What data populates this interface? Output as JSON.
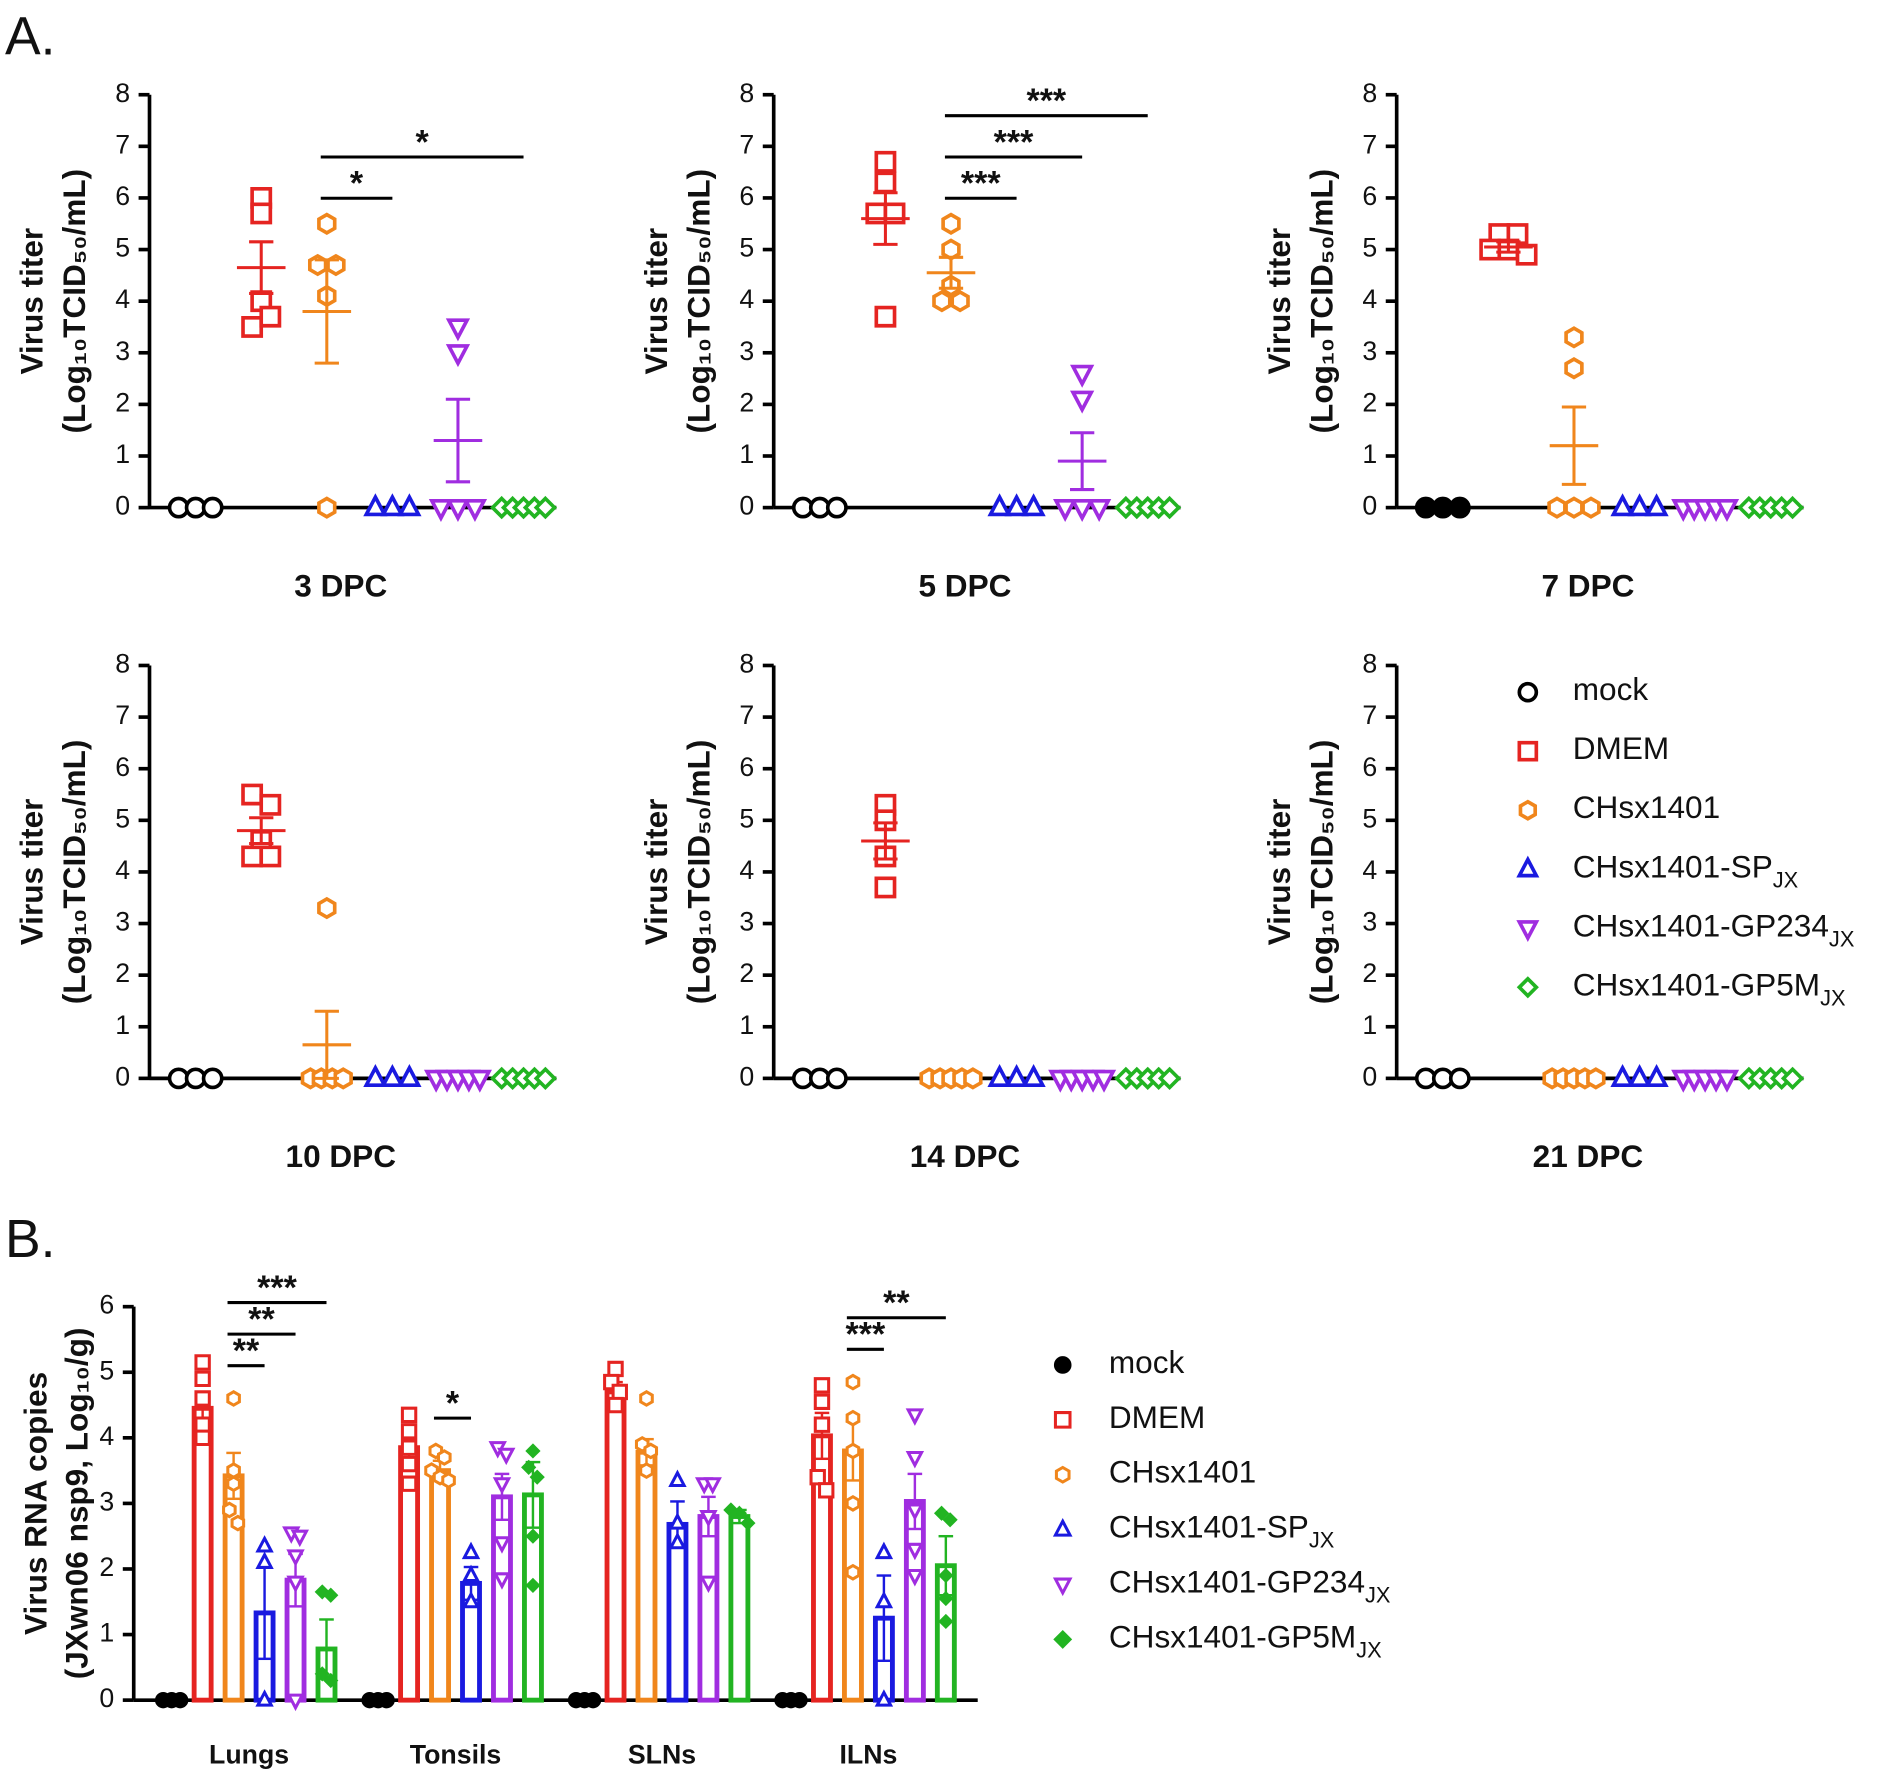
{
  "panel_labels": [
    "A.",
    "B."
  ],
  "legend": {
    "entries": [
      {
        "name": "mock",
        "color": "#000000",
        "marker": "circle",
        "filled": false
      },
      {
        "name": "DMEM",
        "color": "#e52421",
        "marker": "square",
        "filled": false
      },
      {
        "name": "CHsx1401",
        "color": "#f0861c",
        "marker": "hexagon",
        "filled": false
      },
      {
        "name": "CHsx1401-SP",
        "name_sub": "JX",
        "color": "#1a1ae0",
        "marker": "triangle",
        "filled": false
      },
      {
        "name": "CHsx1401-GP234",
        "name_sub": "JX",
        "color": "#a02de0",
        "marker": "triangle-down",
        "filled": false
      },
      {
        "name": "CHsx1401-GP5M",
        "name_sub": "JX",
        "color": "#22b422",
        "marker": "diamond",
        "filled": false
      }
    ]
  },
  "chart_data": [
    {
      "type": "scatter",
      "xlabel": "3 DPC",
      "ylabel": [
        "Virus titer",
        "(Log₁₀TCID₅₀/mL)"
      ],
      "ylim": [
        0,
        8
      ],
      "yticks": [
        0,
        1,
        2,
        3,
        4,
        5,
        6,
        7,
        8
      ],
      "series": [
        {
          "color": "#000000",
          "marker": "circle",
          "filled": false,
          "values": [
            0,
            0,
            0
          ]
        },
        {
          "color": "#e52421",
          "marker": "square",
          "filled": false,
          "values": [
            6.0,
            5.7,
            4.0,
            3.5,
            3.7
          ],
          "mean": 4.65,
          "sem": 0.5
        },
        {
          "color": "#f0861c",
          "marker": "hexagon",
          "filled": false,
          "values": [
            5.5,
            4.7,
            4.7,
            4.1,
            0
          ],
          "mean": 3.8,
          "sem": 1.0
        },
        {
          "color": "#1a1ae0",
          "marker": "triangle",
          "filled": false,
          "values": [
            0,
            0,
            0
          ]
        },
        {
          "color": "#a02de0",
          "marker": "triangle-down",
          "filled": false,
          "values": [
            3.5,
            3.0,
            0,
            0,
            0
          ],
          "mean": 1.3,
          "sem": 0.8
        },
        {
          "color": "#22b422",
          "marker": "diamond",
          "filled": false,
          "values": [
            0,
            0,
            0,
            0,
            0
          ]
        }
      ],
      "comparisons": [
        {
          "from": 2,
          "to": 3,
          "label": "*"
        },
        {
          "from": 2,
          "to": 5,
          "label": "*"
        }
      ]
    },
    {
      "type": "scatter",
      "xlabel": "5 DPC",
      "ylabel": [
        "Virus titer",
        "(Log₁₀TCID₅₀/mL)"
      ],
      "ylim": [
        0,
        8
      ],
      "yticks": [
        0,
        1,
        2,
        3,
        4,
        5,
        6,
        7,
        8
      ],
      "series": [
        {
          "color": "#000000",
          "marker": "circle",
          "filled": false,
          "values": [
            0,
            0,
            0
          ]
        },
        {
          "color": "#e52421",
          "marker": "square",
          "filled": false,
          "values": [
            6.7,
            6.3,
            5.7,
            5.7,
            3.7
          ],
          "mean": 5.6,
          "sem": 0.5
        },
        {
          "color": "#f0861c",
          "marker": "hexagon",
          "filled": false,
          "values": [
            5.5,
            5.0,
            4.3,
            4.0,
            4.0
          ],
          "mean": 4.55,
          "sem": 0.3
        },
        {
          "color": "#1a1ae0",
          "marker": "triangle",
          "filled": false,
          "values": [
            0,
            0,
            0
          ]
        },
        {
          "color": "#a02de0",
          "marker": "triangle-down",
          "filled": false,
          "values": [
            2.6,
            2.1,
            0,
            0,
            0
          ],
          "mean": 0.9,
          "sem": 0.55
        },
        {
          "color": "#22b422",
          "marker": "diamond",
          "filled": false,
          "values": [
            0,
            0,
            0,
            0,
            0
          ]
        }
      ],
      "comparisons": [
        {
          "from": 2,
          "to": 3,
          "label": "***"
        },
        {
          "from": 2,
          "to": 4,
          "label": "***"
        },
        {
          "from": 2,
          "to": 5,
          "label": "***"
        }
      ]
    },
    {
      "type": "scatter",
      "xlabel": "7 DPC",
      "ylabel": [
        "Virus titer",
        "(Log₁₀TCID₅₀/mL)"
      ],
      "ylim": [
        0,
        8
      ],
      "yticks": [
        0,
        1,
        2,
        3,
        4,
        5,
        6,
        7,
        8
      ],
      "series": [
        {
          "color": "#000000",
          "marker": "circle",
          "filled": true,
          "values": [
            0,
            0,
            0
          ]
        },
        {
          "color": "#e52421",
          "marker": "square",
          "filled": false,
          "values": [
            5.3,
            5.3,
            5.0,
            5.0,
            4.9
          ],
          "mean": 5.05,
          "sem": 0.1
        },
        {
          "color": "#f0861c",
          "marker": "hexagon",
          "filled": false,
          "values": [
            3.3,
            2.7,
            0,
            0,
            0
          ],
          "mean": 1.2,
          "sem": 0.75
        },
        {
          "color": "#1a1ae0",
          "marker": "triangle",
          "filled": false,
          "values": [
            0,
            0,
            0
          ]
        },
        {
          "color": "#a02de0",
          "marker": "triangle-down",
          "filled": false,
          "values": [
            0,
            0,
            0,
            0,
            0
          ]
        },
        {
          "color": "#22b422",
          "marker": "diamond",
          "filled": false,
          "values": [
            0,
            0,
            0,
            0,
            0
          ]
        }
      ]
    },
    {
      "type": "scatter",
      "xlabel": "10 DPC",
      "ylabel": [
        "Virus titer",
        "(Log₁₀TCID₅₀/mL)"
      ],
      "ylim": [
        0,
        8
      ],
      "yticks": [
        0,
        1,
        2,
        3,
        4,
        5,
        6,
        7,
        8
      ],
      "series": [
        {
          "color": "#000000",
          "marker": "circle",
          "filled": false,
          "values": [
            0,
            0,
            0
          ]
        },
        {
          "color": "#e52421",
          "marker": "square",
          "filled": false,
          "values": [
            5.5,
            5.3,
            4.6,
            4.3,
            4.3
          ],
          "mean": 4.8,
          "sem": 0.25
        },
        {
          "color": "#f0861c",
          "marker": "hexagon",
          "filled": false,
          "values": [
            3.3,
            0,
            0,
            0,
            0
          ],
          "mean": 0.65,
          "sem": 0.65
        },
        {
          "color": "#1a1ae0",
          "marker": "triangle",
          "filled": false,
          "values": [
            0,
            0,
            0
          ]
        },
        {
          "color": "#a02de0",
          "marker": "triangle-down",
          "filled": false,
          "values": [
            0,
            0,
            0,
            0,
            0
          ]
        },
        {
          "color": "#22b422",
          "marker": "diamond",
          "filled": false,
          "values": [
            0,
            0,
            0,
            0,
            0
          ]
        }
      ]
    },
    {
      "type": "scatter",
      "xlabel": "14 DPC",
      "ylabel": [
        "Virus titer",
        "(Log₁₀TCID₅₀/mL)"
      ],
      "ylim": [
        0,
        8
      ],
      "yticks": [
        0,
        1,
        2,
        3,
        4,
        5,
        6,
        7,
        8
      ],
      "series": [
        {
          "color": "#000000",
          "marker": "circle",
          "filled": false,
          "values": [
            0,
            0,
            0
          ]
        },
        {
          "color": "#e52421",
          "marker": "square",
          "filled": false,
          "values": [
            5.3,
            5.0,
            4.3,
            3.7
          ],
          "mean": 4.6,
          "sem": 0.35
        },
        {
          "color": "#f0861c",
          "marker": "hexagon",
          "filled": false,
          "values": [
            0,
            0,
            0,
            0,
            0
          ]
        },
        {
          "color": "#1a1ae0",
          "marker": "triangle",
          "filled": false,
          "values": [
            0,
            0,
            0
          ]
        },
        {
          "color": "#a02de0",
          "marker": "triangle-down",
          "filled": false,
          "values": [
            0,
            0,
            0,
            0,
            0
          ]
        },
        {
          "color": "#22b422",
          "marker": "diamond",
          "filled": false,
          "values": [
            0,
            0,
            0,
            0,
            0
          ]
        }
      ]
    },
    {
      "type": "scatter",
      "xlabel": "21 DPC",
      "ylabel": [
        "Virus titer",
        "(Log₁₀TCID₅₀/mL)"
      ],
      "ylim": [
        0,
        8
      ],
      "yticks": [
        0,
        1,
        2,
        3,
        4,
        5,
        6,
        7,
        8
      ],
      "series": [
        {
          "color": "#000000",
          "marker": "circle",
          "filled": false,
          "values": [
            0,
            0,
            0
          ]
        },
        {
          "color": "#e52421",
          "marker": "square",
          "filled": false,
          "values": []
        },
        {
          "color": "#f0861c",
          "marker": "hexagon",
          "filled": false,
          "values": [
            0,
            0,
            0,
            0,
            0
          ]
        },
        {
          "color": "#1a1ae0",
          "marker": "triangle",
          "filled": false,
          "values": [
            0,
            0,
            0
          ]
        },
        {
          "color": "#a02de0",
          "marker": "triangle-down",
          "filled": false,
          "values": [
            0,
            0,
            0,
            0,
            0
          ]
        },
        {
          "color": "#22b422",
          "marker": "diamond",
          "filled": false,
          "values": [
            0,
            0,
            0,
            0,
            0
          ]
        }
      ]
    },
    {
      "type": "bar",
      "ylabel": [
        "Virus RNA copies",
        "(JXwn06 nsp9, Log₁₀/g)"
      ],
      "ylim": [
        0,
        6
      ],
      "yticks": [
        0,
        1,
        2,
        3,
        4,
        5,
        6
      ],
      "categories": [
        "Lungs",
        "Tonsils",
        "SLNs",
        "ILNs"
      ],
      "series": [
        {
          "name": "mock",
          "color": "#000000",
          "marker": "circle",
          "filled": true,
          "values": [
            0,
            0,
            0,
            0
          ],
          "points": [
            [
              0,
              0,
              0
            ],
            [
              0,
              0,
              0
            ],
            [
              0,
              0,
              0
            ],
            [
              0,
              0,
              0
            ]
          ]
        },
        {
          "name": "DMEM",
          "color": "#e52421",
          "marker": "square",
          "filled": false,
          "values": [
            4.45,
            3.85,
            4.7,
            4.03
          ],
          "errors": [
            0.25,
            0.2,
            0.15,
            0.35
          ],
          "points": [
            [
              5.15,
              4.9,
              4.6,
              4.2,
              4.0
            ],
            [
              4.35,
              4.1,
              3.85,
              3.6,
              3.3
            ],
            [
              5.05,
              4.85,
              4.7,
              4.5
            ],
            [
              4.8,
              4.55,
              4.2,
              3.4,
              3.2
            ]
          ]
        },
        {
          "name": "CHsx1401",
          "color": "#f0861c",
          "marker": "hexagon",
          "filled": false,
          "values": [
            3.42,
            3.5,
            3.78,
            3.8
          ],
          "errors": [
            0.35,
            0.15,
            0.2,
            0.45
          ],
          "points": [
            [
              4.6,
              3.5,
              3.3,
              2.9,
              2.7
            ],
            [
              3.8,
              3.7,
              3.5,
              3.4,
              3.35
            ],
            [
              4.6,
              3.9,
              3.8,
              3.5
            ],
            [
              4.85,
              4.3,
              3.8,
              3.0,
              1.95
            ]
          ]
        },
        {
          "name": "CHsx1401-SP",
          "name_sub": "JX",
          "color": "#1a1ae0",
          "marker": "triangle",
          "filled": false,
          "values": [
            1.33,
            1.78,
            2.68,
            1.25
          ],
          "errors": [
            0.7,
            0.25,
            0.35,
            0.65
          ],
          "points": [
            [
              2.35,
              2.1,
              0
            ],
            [
              2.25,
              1.9,
              1.5
            ],
            [
              3.35,
              2.7,
              2.4
            ],
            [
              2.25,
              1.5,
              0
            ]
          ]
        },
        {
          "name": "CHsx1401-GP234",
          "name_sub": "JX",
          "color": "#a02de0",
          "marker": "triangle-down",
          "filled": false,
          "values": [
            1.83,
            3.1,
            2.8,
            3.03
          ],
          "errors": [
            0.4,
            0.35,
            0.3,
            0.42
          ],
          "points": [
            [
              2.55,
              2.5,
              2.2,
              1.8,
              0
            ],
            [
              3.85,
              3.75,
              3.3,
              2.4,
              1.85
            ],
            [
              3.3,
              3.3,
              2.8,
              1.8
            ],
            [
              4.35,
              3.7,
              2.9,
              2.3,
              1.9
            ]
          ]
        },
        {
          "name": "CHsx1401-GP5M",
          "name_sub": "JX",
          "color": "#22b422",
          "marker": "diamond",
          "filled": true,
          "values": [
            0.78,
            3.13,
            2.8,
            2.05
          ],
          "errors": [
            0.45,
            0.5,
            0.1,
            0.45
          ],
          "points": [
            [
              1.65,
              1.6,
              0.4,
              0.3
            ],
            [
              3.8,
              3.55,
              3.4,
              2.5,
              1.75
            ],
            [
              2.9,
              2.85,
              2.7
            ],
            [
              2.85,
              2.75,
              1.9,
              1.55,
              1.2
            ]
          ]
        }
      ],
      "comparisons": [
        {
          "category": 0,
          "from": 2,
          "to": 3,
          "label": "**"
        },
        {
          "category": 0,
          "from": 2,
          "to": 4,
          "label": "**"
        },
        {
          "category": 0,
          "from": 2,
          "to": 5,
          "label": "***"
        },
        {
          "category": 1,
          "from": 2,
          "to": 3,
          "label": "*"
        },
        {
          "category": 3,
          "from": 2,
          "to": 3,
          "label": "***"
        },
        {
          "category": 3,
          "from": 2,
          "to": 5,
          "label": "**"
        }
      ]
    }
  ]
}
